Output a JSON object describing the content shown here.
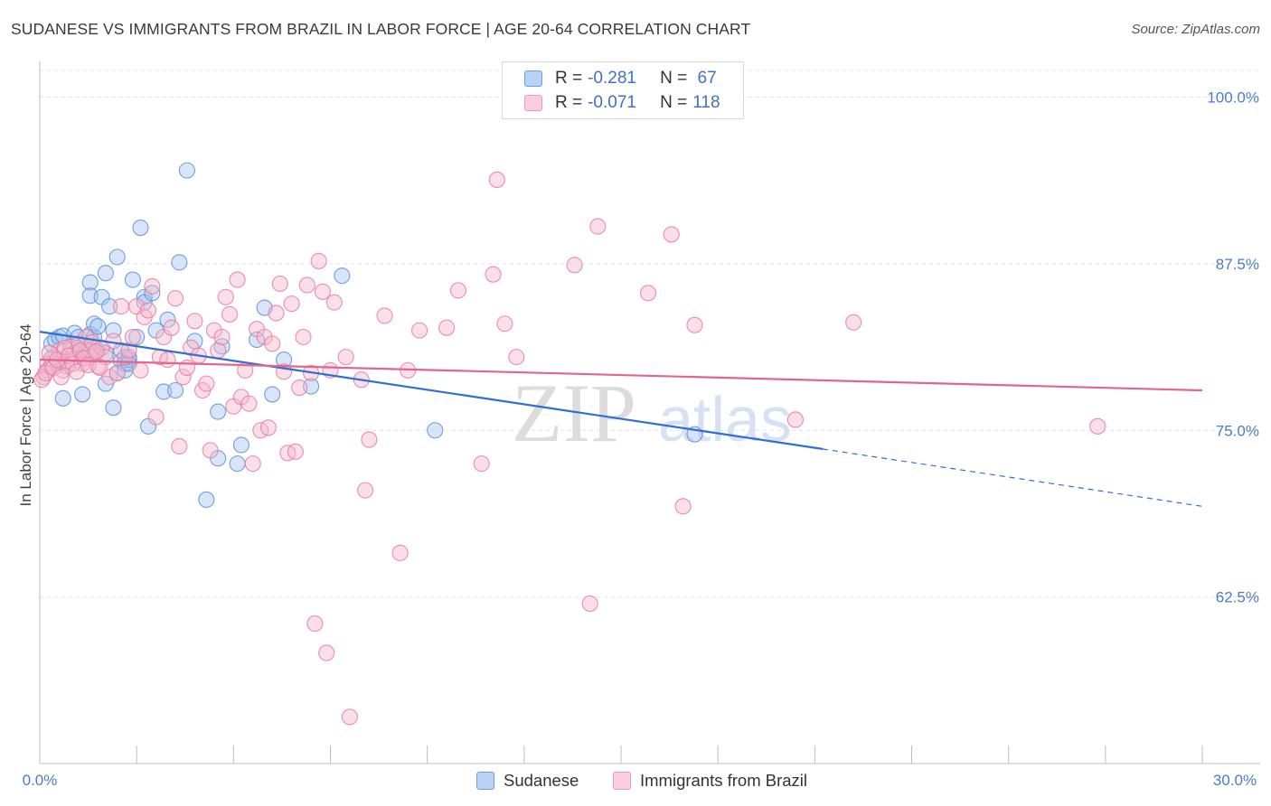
{
  "title": "SUDANESE VS IMMIGRANTS FROM BRAZIL IN LABOR FORCE | AGE 20-64 CORRELATION CHART",
  "source": "Source: ZipAtlas.com",
  "watermark": {
    "zip": "ZIP",
    "atlas": "atlas"
  },
  "legend": {
    "rows": [
      {
        "r_label": "R = ",
        "r_value": "-0.281",
        "n_label": "N = ",
        "n_value": " 67"
      },
      {
        "r_label": "R = ",
        "r_value": "-0.071",
        "n_label": "N = ",
        "n_value": "118"
      }
    ]
  },
  "chart_data": {
    "type": "scatter",
    "title": "SUDANESE VS IMMIGRANTS FROM BRAZIL IN LABOR FORCE | AGE 20-64 CORRELATION CHART",
    "xlabel": "",
    "ylabel": "In Labor Force | Age 20-64",
    "xlim": [
      0,
      30
    ],
    "ylim": [
      50,
      102
    ],
    "x_tick_labels": [
      "0.0%",
      "30.0%"
    ],
    "y_ticks": [
      62.5,
      75.0,
      87.5,
      100.0
    ],
    "y_tick_labels": [
      "62.5%",
      "75.0%",
      "87.5%",
      "100.0%"
    ],
    "grid": true,
    "legend_position": "bottom-center",
    "series": [
      {
        "name": "Sudanese",
        "color": "#5b8fdb",
        "fill": "#a9c6ef",
        "stats": {
          "r": -0.281,
          "n": 67
        },
        "trend": {
          "x_start": 0,
          "y_start": 82.4,
          "x_solid_end": 20.2,
          "y_solid_end": 73.6,
          "x_end": 30,
          "y_end": 69.3
        },
        "points": [
          [
            0.2,
            79.5
          ],
          [
            0.3,
            80.4
          ],
          [
            0.3,
            81.5
          ],
          [
            0.4,
            81.8
          ],
          [
            0.5,
            80.2
          ],
          [
            0.5,
            82.0
          ],
          [
            0.6,
            82.1
          ],
          [
            0.7,
            79.8
          ],
          [
            0.6,
            77.4
          ],
          [
            0.8,
            81.0
          ],
          [
            0.9,
            82.3
          ],
          [
            1.0,
            82.0
          ],
          [
            1.0,
            81.2
          ],
          [
            1.1,
            80.5
          ],
          [
            1.1,
            77.7
          ],
          [
            1.2,
            80.9
          ],
          [
            1.3,
            82.2
          ],
          [
            1.3,
            86.1
          ],
          [
            1.3,
            85.1
          ],
          [
            1.4,
            82.0
          ],
          [
            1.5,
            81.0
          ],
          [
            1.4,
            83.0
          ],
          [
            1.5,
            82.8
          ],
          [
            1.6,
            85.0
          ],
          [
            1.7,
            78.5
          ],
          [
            1.7,
            80.8
          ],
          [
            1.7,
            86.8
          ],
          [
            1.8,
            84.3
          ],
          [
            1.9,
            76.7
          ],
          [
            1.9,
            82.5
          ],
          [
            2.0,
            88.0
          ],
          [
            2.0,
            79.3
          ],
          [
            2.1,
            80.2
          ],
          [
            2.1,
            81.0
          ],
          [
            2.2,
            80.0
          ],
          [
            2.2,
            79.5
          ],
          [
            2.3,
            80.3
          ],
          [
            2.3,
            80.5
          ],
          [
            2.3,
            80.0
          ],
          [
            2.4,
            86.3
          ],
          [
            2.5,
            82.0
          ],
          [
            2.6,
            90.2
          ],
          [
            2.7,
            85.0
          ],
          [
            2.7,
            84.6
          ],
          [
            2.8,
            75.3
          ],
          [
            2.9,
            85.3
          ],
          [
            3.0,
            82.5
          ],
          [
            3.2,
            77.9
          ],
          [
            3.3,
            83.3
          ],
          [
            3.5,
            78.0
          ],
          [
            3.6,
            87.6
          ],
          [
            3.8,
            94.5
          ],
          [
            4.0,
            81.7
          ],
          [
            4.3,
            69.8
          ],
          [
            4.6,
            76.4
          ],
          [
            4.6,
            72.9
          ],
          [
            4.7,
            81.3
          ],
          [
            5.1,
            72.5
          ],
          [
            5.2,
            73.9
          ],
          [
            5.6,
            81.8
          ],
          [
            5.8,
            84.2
          ],
          [
            6.0,
            77.7
          ],
          [
            6.3,
            80.3
          ],
          [
            7.0,
            78.3
          ],
          [
            7.8,
            86.6
          ],
          [
            10.2,
            75.0
          ],
          [
            16.9,
            74.7
          ]
        ]
      },
      {
        "name": "Immigrants from Brazil",
        "color": "#e87aa0",
        "fill": "#f6b8cb",
        "stats": {
          "r": -0.071,
          "n": 118
        },
        "trend": {
          "x_start": 0,
          "y_start": 80.3,
          "x_end": 30,
          "y_end": 78.0
        },
        "points": [
          [
            0.1,
            79.0
          ],
          [
            0.2,
            80.0
          ],
          [
            0.3,
            79.8
          ],
          [
            0.4,
            80.5
          ],
          [
            0.5,
            81.0
          ],
          [
            0.6,
            79.5
          ],
          [
            0.7,
            80.2
          ],
          [
            0.8,
            81.3
          ],
          [
            0.9,
            80.8
          ],
          [
            1.0,
            81.5
          ],
          [
            1.1,
            80.0
          ],
          [
            1.2,
            82.0
          ],
          [
            1.3,
            81.0
          ],
          [
            1.4,
            80.7
          ],
          [
            1.5,
            79.8
          ],
          [
            1.6,
            81.2
          ],
          [
            1.7,
            80.5
          ],
          [
            1.8,
            79.0
          ],
          [
            1.9,
            81.7
          ],
          [
            2.0,
            79.3
          ],
          [
            2.1,
            84.3
          ],
          [
            2.2,
            80.5
          ],
          [
            2.3,
            81.0
          ],
          [
            2.4,
            82.0
          ],
          [
            2.5,
            84.3
          ],
          [
            2.6,
            79.5
          ],
          [
            2.7,
            83.5
          ],
          [
            2.8,
            84.0
          ],
          [
            2.9,
            85.8
          ],
          [
            3.0,
            76.0
          ],
          [
            3.1,
            80.5
          ],
          [
            3.2,
            82.0
          ],
          [
            3.3,
            80.3
          ],
          [
            3.4,
            82.7
          ],
          [
            3.5,
            84.9
          ],
          [
            3.6,
            73.8
          ],
          [
            3.7,
            79.0
          ],
          [
            3.8,
            79.7
          ],
          [
            3.9,
            81.2
          ],
          [
            4.0,
            83.2
          ],
          [
            4.1,
            80.6
          ],
          [
            4.2,
            78.0
          ],
          [
            4.3,
            78.5
          ],
          [
            4.4,
            73.5
          ],
          [
            4.5,
            82.5
          ],
          [
            4.6,
            81.0
          ],
          [
            4.7,
            82.0
          ],
          [
            4.8,
            85.0
          ],
          [
            4.9,
            83.7
          ],
          [
            5.0,
            76.8
          ],
          [
            5.1,
            86.3
          ],
          [
            5.2,
            77.5
          ],
          [
            5.3,
            79.5
          ],
          [
            5.4,
            77.0
          ],
          [
            5.5,
            72.5
          ],
          [
            5.6,
            82.6
          ],
          [
            5.7,
            75.0
          ],
          [
            5.8,
            82.0
          ],
          [
            5.9,
            75.2
          ],
          [
            6.0,
            81.5
          ],
          [
            6.1,
            83.8
          ],
          [
            6.2,
            86.0
          ],
          [
            6.3,
            79.4
          ],
          [
            6.4,
            73.3
          ],
          [
            6.5,
            84.5
          ],
          [
            6.6,
            73.4
          ],
          [
            6.7,
            78.2
          ],
          [
            6.8,
            82.0
          ],
          [
            6.9,
            85.9
          ],
          [
            7.0,
            79.3
          ],
          [
            7.1,
            60.5
          ],
          [
            7.2,
            87.7
          ],
          [
            7.3,
            85.4
          ],
          [
            7.4,
            58.3
          ],
          [
            7.5,
            79.5
          ],
          [
            7.6,
            84.6
          ],
          [
            7.9,
            80.5
          ],
          [
            8.0,
            53.5
          ],
          [
            8.3,
            78.8
          ],
          [
            8.4,
            70.5
          ],
          [
            8.5,
            74.3
          ],
          [
            8.9,
            83.6
          ],
          [
            9.3,
            65.8
          ],
          [
            9.5,
            79.5
          ],
          [
            9.8,
            82.5
          ],
          [
            10.5,
            82.7
          ],
          [
            10.8,
            85.5
          ],
          [
            11.4,
            72.5
          ],
          [
            11.7,
            86.7
          ],
          [
            11.8,
            93.8
          ],
          [
            12.0,
            83.0
          ],
          [
            12.3,
            80.5
          ],
          [
            13.8,
            87.4
          ],
          [
            14.2,
            62.0
          ],
          [
            14.4,
            90.3
          ],
          [
            15.7,
            85.3
          ],
          [
            16.3,
            89.7
          ],
          [
            16.6,
            69.3
          ],
          [
            16.9,
            82.9
          ],
          [
            19.5,
            75.8
          ],
          [
            21.0,
            83.1
          ],
          [
            27.3,
            75.3
          ],
          [
            0.05,
            78.8
          ],
          [
            0.15,
            79.3
          ],
          [
            0.25,
            80.8
          ],
          [
            0.35,
            79.7
          ],
          [
            0.45,
            80.3
          ],
          [
            0.55,
            79.0
          ],
          [
            0.65,
            81.2
          ],
          [
            0.75,
            80.6
          ],
          [
            0.85,
            80.0
          ],
          [
            0.95,
            79.4
          ],
          [
            1.05,
            81.0
          ],
          [
            1.15,
            80.4
          ],
          [
            1.25,
            79.9
          ],
          [
            1.35,
            81.6
          ],
          [
            1.45,
            80.9
          ],
          [
            1.55,
            79.7
          ]
        ]
      }
    ]
  }
}
